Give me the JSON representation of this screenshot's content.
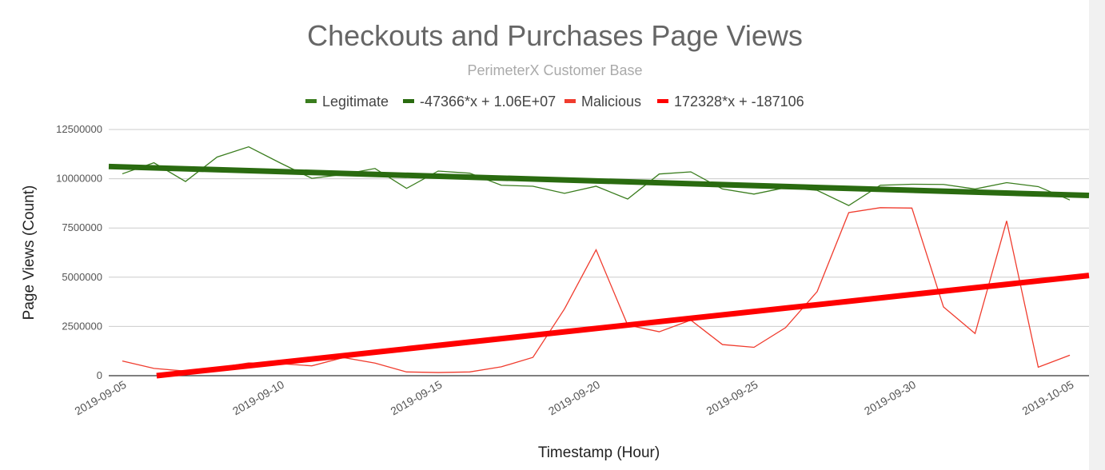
{
  "chart_data": {
    "type": "line",
    "title": "Checkouts and Purchases Page Views",
    "subtitle": "PerimeterX Customer Base",
    "xlabel": "Timestamp (Hour)",
    "ylabel": "Page Views (Count)",
    "ylim": [
      0,
      12500000
    ],
    "yticks": [
      "0",
      "2500000",
      "5000000",
      "7500000",
      "10000000",
      "12500000"
    ],
    "xticks": [
      "2019-09-05",
      "2019-09-10",
      "2019-09-15",
      "2019-09-20",
      "2019-09-25",
      "2019-09-30",
      "2019-10-05"
    ],
    "grid": true,
    "legend_position": "top",
    "x": [
      "2019-09-05",
      "2019-09-06",
      "2019-09-07",
      "2019-09-08",
      "2019-09-09",
      "2019-09-10",
      "2019-09-11",
      "2019-09-12",
      "2019-09-13",
      "2019-09-14",
      "2019-09-15",
      "2019-09-16",
      "2019-09-17",
      "2019-09-18",
      "2019-09-19",
      "2019-09-20",
      "2019-09-21",
      "2019-09-22",
      "2019-09-23",
      "2019-09-24",
      "2019-09-25",
      "2019-09-26",
      "2019-09-27",
      "2019-09-28",
      "2019-09-29",
      "2019-09-30",
      "2019-10-01",
      "2019-10-02",
      "2019-10-03",
      "2019-10-04",
      "2019-10-05"
    ],
    "series": [
      {
        "name": "Legitimate",
        "color": "#3a7d1e",
        "values": [
          10250000,
          10810000,
          9860000,
          11100000,
          11620000,
          10800000,
          10020000,
          10220000,
          10520000,
          9510000,
          10390000,
          10280000,
          9670000,
          9620000,
          9260000,
          9620000,
          8970000,
          10240000,
          10350000,
          9480000,
          9220000,
          9550000,
          9410000,
          8640000,
          9670000,
          9720000,
          9710000,
          9480000,
          9800000,
          9600000,
          8920000
        ]
      },
      {
        "name": "Malicious",
        "color": "#f03c2e",
        "values": [
          745000,
          370000,
          230000,
          400000,
          650000,
          610000,
          500000,
          920000,
          640000,
          190000,
          160000,
          190000,
          450000,
          930000,
          3390000,
          6390000,
          2570000,
          2230000,
          2820000,
          1580000,
          1440000,
          2440000,
          4270000,
          8280000,
          8530000,
          8510000,
          3490000,
          2140000,
          7860000,
          430000,
          1040000
        ]
      }
    ],
    "trendlines": [
      {
        "name": "-47366*x + 1.06E+07",
        "slope": -47366,
        "intercept": 10600000,
        "color": "#2a6b10"
      },
      {
        "name": "172328*x + -187106",
        "slope": 172328,
        "intercept": -187106,
        "color": "#ff0000"
      }
    ]
  }
}
